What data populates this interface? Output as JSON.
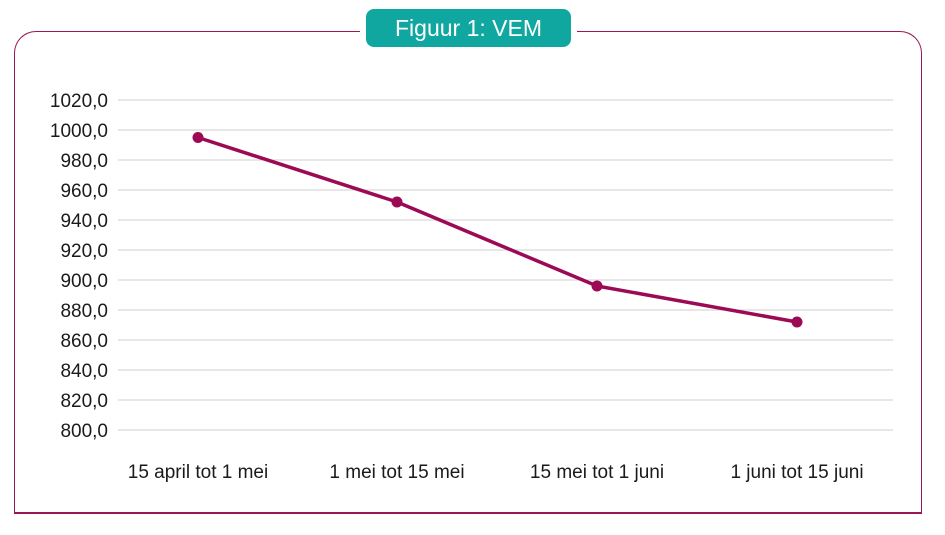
{
  "chart_data": {
    "type": "line",
    "title": "Figuur 1: VEM",
    "xlabel": "",
    "ylabel": "",
    "categories": [
      "15 april tot 1 mei",
      "1 mei tot 15 mei",
      "15 mei tot 1 juni",
      "1 juni tot 15 juni"
    ],
    "yticks": [
      "1020,0",
      "1000,0",
      "980,0",
      "960,0",
      "940,0",
      "920,0",
      "900,0",
      "880,0",
      "860,0",
      "840,0",
      "820,0",
      "800,0"
    ],
    "ylim": [
      800,
      1020
    ],
    "grid": true,
    "legend": "none",
    "series": [
      {
        "values": [
          995,
          952,
          896,
          872
        ],
        "color": "#9c0a55"
      }
    ],
    "colors": {
      "frame": "#9c1756",
      "title_background": "#0fa7a0",
      "gridline": "#cfcfcf"
    }
  }
}
